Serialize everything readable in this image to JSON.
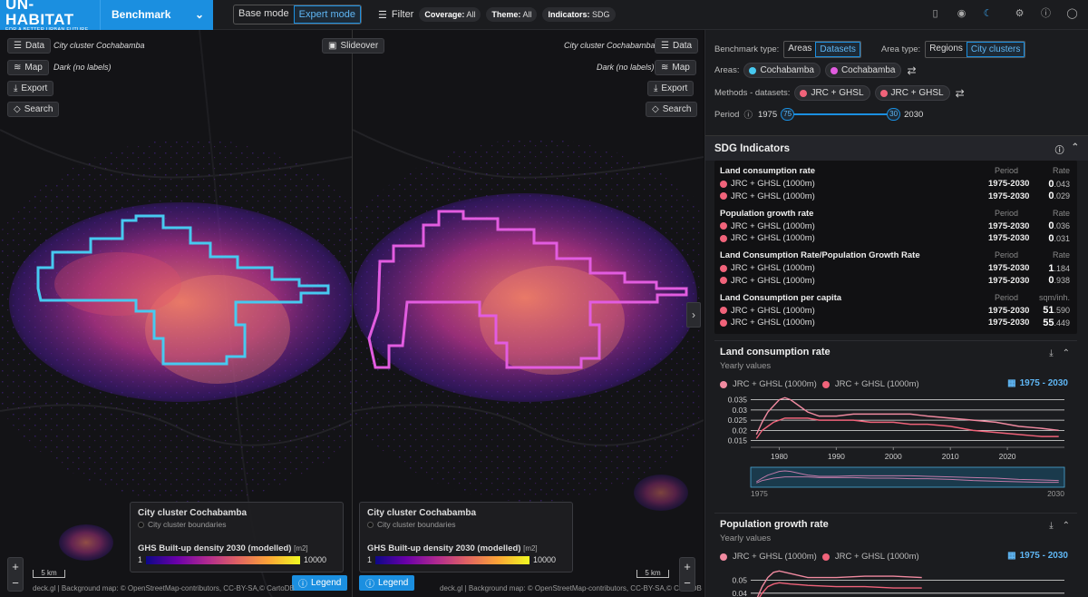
{
  "header": {
    "logo_main": "UN-HABITAT",
    "logo_sub": "FOR A BETTER URBAN FUTURE",
    "app_title": "Benchmark",
    "modes": [
      "Base mode",
      "Expert mode"
    ],
    "active_mode": "Expert mode",
    "filter_label": "Filter",
    "chips": [
      {
        "key": "Coverage:",
        "value": "All"
      },
      {
        "key": "Theme:",
        "value": "All"
      },
      {
        "key": "Indicators:",
        "value": "SDG"
      }
    ]
  },
  "map_left": {
    "data_btn": "Data",
    "map_btn": "Map",
    "export_btn": "Export",
    "search_btn": "Search",
    "data_label": "City cluster Cochabamba",
    "map_label": "Dark (no labels)",
    "outline_color": "#47c9f0"
  },
  "map_right": {
    "slideover_btn": "Slideover",
    "data_btn": "Data",
    "map_btn": "Map",
    "export_btn": "Export",
    "search_btn": "Search",
    "data_label": "City cluster Cochabamba",
    "map_label": "Dark (no labels)",
    "outline_color": "#e25ce0"
  },
  "legend": {
    "title": "City cluster Cochabamba",
    "boundaries": "City cluster boundaries",
    "layer": "GHS Built-up density 2030 (modelled)",
    "unit": "[m2]",
    "min": "1",
    "max": "10000",
    "button": "Legend"
  },
  "scale_label": "5 km",
  "attribution": "deck.gl | Background map: © OpenStreetMap-contributors, CC-BY-SA,© CartoDB",
  "panel": {
    "benchmark_type_label": "Benchmark type:",
    "benchmark_types": [
      "Areas",
      "Datasets"
    ],
    "active_benchmark_type": "Datasets",
    "area_type_label": "Area type:",
    "area_types": [
      "Regions",
      "City clusters"
    ],
    "active_area_type": "City clusters",
    "areas_label": "Areas:",
    "areas": [
      {
        "name": "Cochabamba",
        "color": "#47c9f0"
      },
      {
        "name": "Cochabamba",
        "color": "#e25ce0"
      }
    ],
    "methods_label": "Methods - datasets:",
    "methods": [
      {
        "name": "JRC + GHSL",
        "color": "#f0637a"
      },
      {
        "name": "JRC + GHSL",
        "color": "#f0637a"
      }
    ],
    "period_label": "Period",
    "period_start": "1975",
    "period_end": "2030",
    "knob_start": "75",
    "knob_end": "30",
    "sdg_title": "SDG Indicators",
    "indicators": [
      {
        "title": "Land consumption rate",
        "col_period": "Period",
        "col_value": "Rate",
        "rows": [
          {
            "method": "JRC + GHSL (1000m)",
            "period": "1975-2030",
            "int": "0",
            "dec": ".043"
          },
          {
            "method": "JRC + GHSL (1000m)",
            "period": "1975-2030",
            "int": "0",
            "dec": ".029"
          }
        ]
      },
      {
        "title": "Population growth rate",
        "col_period": "Period",
        "col_value": "Rate",
        "rows": [
          {
            "method": "JRC + GHSL (1000m)",
            "period": "1975-2030",
            "int": "0",
            "dec": ".036"
          },
          {
            "method": "JRC + GHSL (1000m)",
            "period": "1975-2030",
            "int": "0",
            "dec": ".031"
          }
        ]
      },
      {
        "title": "Land Consumption Rate/Population Growth Rate",
        "col_period": "Period",
        "col_value": "Rate",
        "rows": [
          {
            "method": "JRC + GHSL (1000m)",
            "period": "1975-2030",
            "int": "1",
            "dec": ".184"
          },
          {
            "method": "JRC + GHSL (1000m)",
            "period": "1975-2030",
            "int": "0",
            "dec": ".938"
          }
        ]
      },
      {
        "title": "Land Consumption per capita",
        "col_period": "Period",
        "col_value": "sqm/inh.",
        "rows": [
          {
            "method": "JRC + GHSL (1000m)",
            "period": "1975-2030",
            "int": "51",
            "dec": ".590"
          },
          {
            "method": "JRC + GHSL (1000m)",
            "period": "1975-2030",
            "int": "55",
            "dec": ".449"
          }
        ]
      }
    ]
  },
  "chart_data": [
    {
      "type": "line",
      "title": "Land consumption rate",
      "subtitle": "Yearly values",
      "range_label": "1975 - 2030",
      "x": [
        1976,
        1977,
        1978,
        1979,
        1980,
        1981,
        1982,
        1983,
        1985,
        1987,
        1990,
        1993,
        1996,
        2000,
        2003,
        2006,
        2010,
        2014,
        2018,
        2022,
        2026,
        2029
      ],
      "series": [
        {
          "name": "JRC + GHSL (1000m)",
          "color": "#f08aa0",
          "values": [
            0.018,
            0.024,
            0.029,
            0.032,
            0.035,
            0.036,
            0.035,
            0.033,
            0.029,
            0.027,
            0.027,
            0.028,
            0.028,
            0.028,
            0.028,
            0.027,
            0.026,
            0.025,
            0.024,
            0.022,
            0.021,
            0.02
          ]
        },
        {
          "name": "JRC + GHSL (1000m)",
          "color": "#f0637a",
          "values": [
            0.016,
            0.02,
            0.022,
            0.024,
            0.025,
            0.026,
            0.026,
            0.026,
            0.026,
            0.025,
            0.025,
            0.025,
            0.024,
            0.024,
            0.023,
            0.023,
            0.022,
            0.02,
            0.019,
            0.018,
            0.017,
            0.017
          ]
        }
      ],
      "yticks": [
        "0.035",
        "0.03",
        "0.025",
        "0.02",
        "0.015"
      ],
      "ytick_values": [
        0.035,
        0.03,
        0.025,
        0.02,
        0.015
      ],
      "xticks": [
        1980,
        1990,
        2000,
        2010,
        2020
      ],
      "xlim": [
        1975,
        2030
      ],
      "ylim": [
        0.0135,
        0.0375
      ],
      "brush_start": "1975",
      "brush_end": "2030"
    },
    {
      "type": "line",
      "title": "Population growth rate",
      "subtitle": "Yearly values",
      "range_label": "1975 - 2030",
      "x": [
        1976,
        1977,
        1978,
        1979,
        1980,
        1982,
        1985,
        1990,
        1995,
        2000,
        2005
      ],
      "series": [
        {
          "name": "JRC + GHSL (1000m)",
          "color": "#f08aa0",
          "values": [
            0.035,
            0.045,
            0.052,
            0.056,
            0.057,
            0.055,
            0.052,
            0.052,
            0.053,
            0.053,
            0.052
          ]
        },
        {
          "name": "JRC + GHSL (1000m)",
          "color": "#f0637a",
          "values": [
            0.033,
            0.04,
            0.045,
            0.047,
            0.048,
            0.047,
            0.046,
            0.045,
            0.045,
            0.044,
            0.044
          ]
        }
      ],
      "yticks": [
        "0.05",
        "0.04"
      ],
      "ytick_values": [
        0.05,
        0.04
      ],
      "xlim": [
        1975,
        2030
      ],
      "ylim": [
        0.035,
        0.06
      ]
    }
  ]
}
